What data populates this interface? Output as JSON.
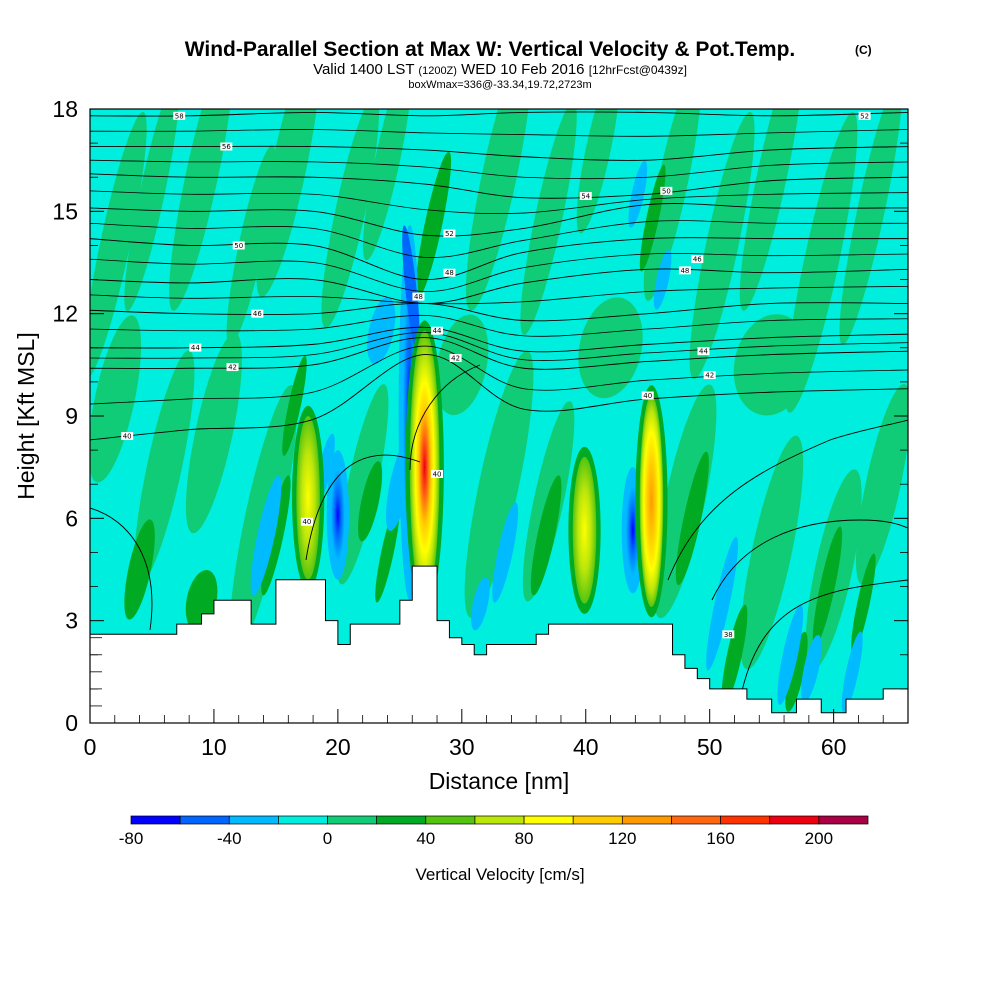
{
  "chart_data": {
    "type": "heatmap",
    "title": "Wind-Parallel Section at Max W: Vertical Velocity & Pot.Temp.",
    "title_mark": "(C)",
    "subtitle_a": "Valid 1400 LST",
    "subtitle_b": "(1200Z)",
    "subtitle_c": "WED 10 Feb 2016",
    "subtitle_d": "[12hrFcst@0439z]",
    "info": "boxWmax=336@-33.34,19.72,2723m",
    "xlabel": "Distance [nm]",
    "ylabel": "Height [Kft MSL]",
    "xlim": [
      0,
      66
    ],
    "ylim": [
      0,
      18
    ],
    "x_ticks": [
      "0",
      "10",
      "20",
      "30",
      "40",
      "50",
      "60"
    ],
    "y_ticks": [
      "0",
      "3",
      "6",
      "9",
      "12",
      "15",
      "18"
    ],
    "colorbar": {
      "title": "Vertical Velocity [cm/s]",
      "levels": [
        -80,
        -60,
        -40,
        -20,
        0,
        20,
        40,
        60,
        80,
        100,
        120,
        140,
        160,
        180,
        200,
        220
      ],
      "tick_labels": [
        "-80",
        "-40",
        "0",
        "40",
        "80",
        "120",
        "160",
        "200"
      ],
      "colors": [
        "#0000ff",
        "#0066ff",
        "#00bbff",
        "#00eedd",
        "#11cc77",
        "#00aa22",
        "#55c411",
        "#bbe60a",
        "#ffff00",
        "#ffcc00",
        "#ff9900",
        "#ff6611",
        "#ff3300",
        "#ee0011",
        "#aa0044"
      ]
    },
    "field_colors": {
      "background": "#00eedd",
      "light_green": "#11cc77",
      "green": "#00aa22",
      "light_blue": "#00bbff",
      "blue": "#0066ff",
      "deep_blue": "#0000ff",
      "yellow_green": "#bbe60a",
      "yellow": "#ffff00",
      "orange": "#ff9900",
      "red": "#ee0011",
      "terrain": "#ffffff"
    },
    "updrafts": [
      {
        "x": 17.6,
        "y_top": 9.0,
        "y_base": 4.2,
        "peak_cms": 100
      },
      {
        "x": 27.0,
        "y_top": 11.5,
        "y_base": 3.5,
        "peak_cms": 200
      },
      {
        "x": 39.9,
        "y_top": 7.8,
        "y_base": 3.5,
        "peak_cms": 80
      },
      {
        "x": 45.3,
        "y_top": 9.6,
        "y_base": 3.4,
        "peak_cms": 130
      }
    ],
    "downdrafts": [
      {
        "x": 20.0,
        "y_top": 8.0,
        "y_base": 4.2,
        "peak_cms": -60
      },
      {
        "x": 25.8,
        "y_top": 14.6,
        "y_base": 3.6,
        "peak_cms": -80
      },
      {
        "x": 43.8,
        "y_top": 7.5,
        "y_base": 3.8,
        "peak_cms": -80
      }
    ],
    "terrain_profile": {
      "x": [
        0,
        7,
        7,
        9,
        9,
        10,
        10,
        11,
        11,
        13,
        13,
        15,
        15,
        19,
        19,
        20,
        20,
        21,
        21,
        25,
        25,
        26,
        26,
        28,
        28,
        29,
        29,
        30,
        30,
        31,
        31,
        32,
        32,
        36,
        36,
        37,
        37,
        47,
        47,
        48,
        48,
        49,
        49,
        50,
        50,
        53,
        53,
        55,
        55,
        57,
        57,
        59,
        59,
        61,
        61,
        64,
        64,
        66
      ],
      "y_kft": [
        2.6,
        2.6,
        2.9,
        2.9,
        3.2,
        3.2,
        3.6,
        3.6,
        3.6,
        3.6,
        2.9,
        2.9,
        4.2,
        4.2,
        3.0,
        3.0,
        2.3,
        2.3,
        2.9,
        2.9,
        3.6,
        3.6,
        4.6,
        4.6,
        3.0,
        3.0,
        2.5,
        2.5,
        2.3,
        2.3,
        2.0,
        2.0,
        2.3,
        2.3,
        2.6,
        2.6,
        2.9,
        2.9,
        2.0,
        2.0,
        1.6,
        1.6,
        1.3,
        1.3,
        1.0,
        1.0,
        0.7,
        0.7,
        0.3,
        0.3,
        0.7,
        0.7,
        0.3,
        0.3,
        0.7,
        0.7,
        1.0,
        1.0
      ]
    },
    "isentropes_C": [
      {
        "label": "58",
        "heights_kft": [
          17.8,
          17.8,
          17.9,
          17.8,
          17.9,
          17.9,
          17.8,
          17.9
        ],
        "label_x": 7.2
      },
      {
        "label": "56",
        "heights_kft": [
          16.9,
          16.9,
          16.9,
          16.8,
          16.6,
          16.5,
          16.8,
          16.9
        ],
        "label_x": 11.0
      },
      {
        "label": "54",
        "heights_kft": [
          16.1,
          16.0,
          16.0,
          15.8,
          15.4,
          15.5,
          15.9,
          16.0
        ],
        "label_x": 40.0
      },
      {
        "label": "52",
        "heights_kft": [
          15.1,
          15.0,
          15.0,
          14.3,
          14.5,
          15.2,
          15.1,
          15.1
        ],
        "label_x": 29.0
      },
      {
        "label": "50",
        "heights_kft": [
          14.2,
          14.0,
          14.0,
          13.0,
          13.8,
          14.2,
          14.2,
          14.2
        ],
        "label_x": 12.0
      },
      {
        "label": "48",
        "heights_kft": [
          13.0,
          12.9,
          13.0,
          12.3,
          12.9,
          13.3,
          13.2,
          13.3
        ],
        "label_x": 48.0
      },
      {
        "label": "46",
        "heights_kft": [
          12.1,
          12.0,
          12.0,
          12.3,
          11.8,
          12.0,
          12.3,
          12.3
        ],
        "label_x": 13.5
      },
      {
        "label": "44",
        "heights_kft": [
          11.0,
          11.0,
          11.1,
          11.6,
          10.9,
          11.1,
          11.3,
          11.4
        ],
        "label_x": 8.5
      },
      {
        "label": "42",
        "heights_kft": [
          10.4,
          10.4,
          10.5,
          11.3,
          10.4,
          10.6,
          10.8,
          10.9
        ],
        "label_x": 11.5
      },
      {
        "label": "40",
        "heights_kft": [
          8.3,
          8.6,
          8.9,
          10.8,
          9.2,
          9.5,
          9.7,
          9.8
        ],
        "label_x": 3.0
      }
    ],
    "isentrope_x": [
      0,
      8,
      18,
      27,
      35,
      45,
      55,
      66
    ],
    "inline_labels": [
      {
        "label": "40",
        "x": 17.5,
        "y": 5.9
      },
      {
        "label": "40",
        "x": 28.0,
        "y": 7.3
      },
      {
        "label": "40",
        "x": 45.0,
        "y": 9.6
      },
      {
        "label": "38",
        "x": 51.5,
        "y": 2.6
      },
      {
        "label": "48",
        "x": 26.5,
        "y": 12.5
      },
      {
        "label": "48",
        "x": 29.0,
        "y": 13.2
      },
      {
        "label": "44",
        "x": 28.0,
        "y": 11.5
      },
      {
        "label": "42",
        "x": 29.5,
        "y": 10.7
      },
      {
        "label": "52",
        "x": 62.5,
        "y": 17.8
      },
      {
        "label": "50",
        "x": 46.5,
        "y": 15.6
      },
      {
        "label": "46",
        "x": 49.0,
        "y": 13.6
      },
      {
        "label": "44",
        "x": 49.5,
        "y": 10.9
      },
      {
        "label": "42",
        "x": 50.0,
        "y": 10.2
      }
    ]
  }
}
